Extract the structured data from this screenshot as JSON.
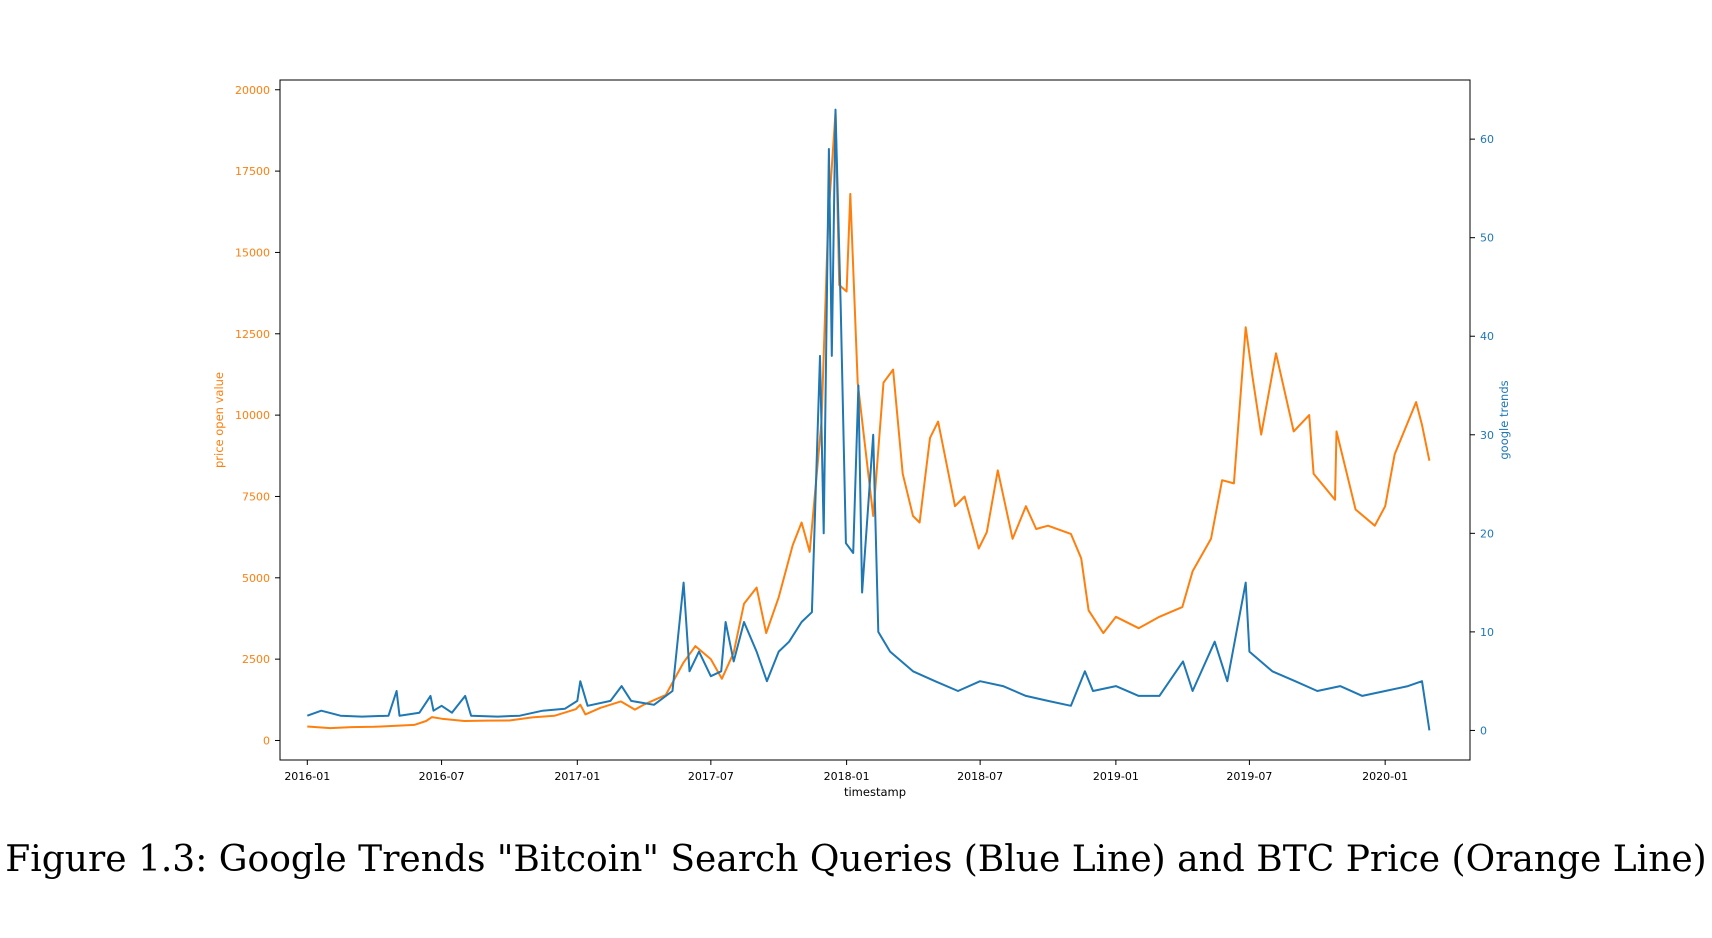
{
  "caption": "Figure 1.3: Google Trends \"Bitcoin\" Search Queries (Blue Line) and BTC Price (Orange Line)",
  "colors": {
    "price": "#ff7f0e",
    "trends": "#1f77b4",
    "axis": "#000000"
  },
  "chart_data": {
    "type": "line",
    "title": "",
    "xlabel": "timestamp",
    "ylabel_left": "price open value",
    "ylabel_right": "google trends",
    "x_tick_labels": [
      "2016-01",
      "2016-07",
      "2017-01",
      "2017-07",
      "2018-01",
      "2018-07",
      "2019-01",
      "2019-07",
      "2020-01"
    ],
    "y_left_ticks": [
      0,
      2500,
      5000,
      7500,
      10000,
      12500,
      15000,
      17500,
      20000
    ],
    "y_right_ticks": [
      0,
      10,
      20,
      30,
      40,
      50,
      60
    ],
    "xlim": [
      "2015-11-25",
      "2020-04-25"
    ],
    "ylim_left": [
      -600,
      20300
    ],
    "ylim_right": [
      -3,
      66
    ],
    "grid": false,
    "series": [
      {
        "name": "price open value",
        "axis": "left",
        "points": [
          [
            "2016-01-01",
            430
          ],
          [
            "2016-02-01",
            380
          ],
          [
            "2016-03-01",
            410
          ],
          [
            "2016-04-01",
            420
          ],
          [
            "2016-05-01",
            450
          ],
          [
            "2016-05-25",
            480
          ],
          [
            "2016-06-10",
            600
          ],
          [
            "2016-06-18",
            720
          ],
          [
            "2016-07-01",
            670
          ],
          [
            "2016-08-01",
            600
          ],
          [
            "2016-09-01",
            610
          ],
          [
            "2016-10-01",
            615
          ],
          [
            "2016-11-01",
            710
          ],
          [
            "2016-12-01",
            760
          ],
          [
            "2016-12-30",
            960
          ],
          [
            "2017-01-05",
            1100
          ],
          [
            "2017-01-12",
            800
          ],
          [
            "2017-02-01",
            1000
          ],
          [
            "2017-03-01",
            1200
          ],
          [
            "2017-03-20",
            950
          ],
          [
            "2017-04-01",
            1100
          ],
          [
            "2017-05-01",
            1400
          ],
          [
            "2017-05-25",
            2400
          ],
          [
            "2017-06-10",
            2900
          ],
          [
            "2017-07-01",
            2500
          ],
          [
            "2017-07-16",
            1900
          ],
          [
            "2017-08-01",
            2700
          ],
          [
            "2017-08-15",
            4200
          ],
          [
            "2017-09-01",
            4700
          ],
          [
            "2017-09-14",
            3300
          ],
          [
            "2017-10-01",
            4400
          ],
          [
            "2017-10-20",
            6000
          ],
          [
            "2017-11-01",
            6700
          ],
          [
            "2017-11-12",
            5800
          ],
          [
            "2017-11-28",
            9800
          ],
          [
            "2017-12-07",
            16000
          ],
          [
            "2017-12-17",
            19300
          ],
          [
            "2017-12-22",
            14000
          ],
          [
            "2018-01-01",
            13800
          ],
          [
            "2018-01-06",
            16800
          ],
          [
            "2018-01-16",
            11000
          ],
          [
            "2018-02-06",
            6900
          ],
          [
            "2018-02-20",
            11000
          ],
          [
            "2018-03-05",
            11400
          ],
          [
            "2018-03-18",
            8200
          ],
          [
            "2018-04-01",
            6900
          ],
          [
            "2018-04-10",
            6700
          ],
          [
            "2018-04-24",
            9300
          ],
          [
            "2018-05-05",
            9800
          ],
          [
            "2018-05-28",
            7200
          ],
          [
            "2018-06-10",
            7500
          ],
          [
            "2018-06-29",
            5900
          ],
          [
            "2018-07-10",
            6400
          ],
          [
            "2018-07-25",
            8300
          ],
          [
            "2018-08-14",
            6200
          ],
          [
            "2018-09-01",
            7200
          ],
          [
            "2018-09-15",
            6500
          ],
          [
            "2018-10-01",
            6600
          ],
          [
            "2018-11-01",
            6350
          ],
          [
            "2018-11-15",
            5600
          ],
          [
            "2018-11-25",
            4000
          ],
          [
            "2018-12-15",
            3300
          ],
          [
            "2019-01-01",
            3800
          ],
          [
            "2019-02-01",
            3450
          ],
          [
            "2019-03-01",
            3800
          ],
          [
            "2019-04-01",
            4100
          ],
          [
            "2019-04-15",
            5200
          ],
          [
            "2019-05-10",
            6200
          ],
          [
            "2019-05-25",
            8000
          ],
          [
            "2019-06-10",
            7900
          ],
          [
            "2019-06-26",
            12700
          ],
          [
            "2019-07-05",
            11200
          ],
          [
            "2019-07-17",
            9400
          ],
          [
            "2019-08-06",
            11900
          ],
          [
            "2019-08-30",
            9500
          ],
          [
            "2019-09-20",
            10000
          ],
          [
            "2019-09-26",
            8200
          ],
          [
            "2019-10-25",
            7400
          ],
          [
            "2019-10-27",
            9500
          ],
          [
            "2019-11-22",
            7100
          ],
          [
            "2019-12-18",
            6600
          ],
          [
            "2020-01-01",
            7200
          ],
          [
            "2020-01-14",
            8800
          ],
          [
            "2020-02-12",
            10400
          ],
          [
            "2020-02-20",
            9700
          ],
          [
            "2020-03-01",
            8600
          ]
        ]
      },
      {
        "name": "google trends",
        "axis": "right",
        "points": [
          [
            "2016-01-01",
            1.5
          ],
          [
            "2016-01-20",
            2
          ],
          [
            "2016-02-15",
            1.5
          ],
          [
            "2016-03-15",
            1.4
          ],
          [
            "2016-04-20",
            1.5
          ],
          [
            "2016-05-01",
            4
          ],
          [
            "2016-05-05",
            1.5
          ],
          [
            "2016-06-01",
            1.8
          ],
          [
            "2016-06-16",
            3.5
          ],
          [
            "2016-06-20",
            2
          ],
          [
            "2016-07-01",
            2.5
          ],
          [
            "2016-07-15",
            1.8
          ],
          [
            "2016-08-02",
            3.5
          ],
          [
            "2016-08-10",
            1.5
          ],
          [
            "2016-09-15",
            1.4
          ],
          [
            "2016-10-15",
            1.5
          ],
          [
            "2016-11-15",
            2
          ],
          [
            "2016-12-15",
            2.2
          ],
          [
            "2017-01-01",
            3
          ],
          [
            "2017-01-05",
            5
          ],
          [
            "2017-01-15",
            2.5
          ],
          [
            "2017-02-15",
            3
          ],
          [
            "2017-03-02",
            4.5
          ],
          [
            "2017-03-15",
            3
          ],
          [
            "2017-04-15",
            2.6
          ],
          [
            "2017-05-10",
            4
          ],
          [
            "2017-05-25",
            15
          ],
          [
            "2017-06-02",
            6
          ],
          [
            "2017-06-15",
            8
          ],
          [
            "2017-07-01",
            5.5
          ],
          [
            "2017-07-15",
            6
          ],
          [
            "2017-07-21",
            11
          ],
          [
            "2017-08-01",
            7
          ],
          [
            "2017-08-15",
            11
          ],
          [
            "2017-09-01",
            8
          ],
          [
            "2017-09-15",
            5
          ],
          [
            "2017-10-01",
            8
          ],
          [
            "2017-10-15",
            9
          ],
          [
            "2017-11-01",
            11
          ],
          [
            "2017-11-15",
            12
          ],
          [
            "2017-11-26",
            38
          ],
          [
            "2017-12-01",
            20
          ],
          [
            "2017-12-08",
            59
          ],
          [
            "2017-12-12",
            38
          ],
          [
            "2017-12-17",
            63
          ],
          [
            "2017-12-24",
            43
          ],
          [
            "2017-12-31",
            19
          ],
          [
            "2018-01-10",
            18
          ],
          [
            "2018-01-17",
            35
          ],
          [
            "2018-01-22",
            14
          ],
          [
            "2018-02-06",
            30
          ],
          [
            "2018-02-13",
            10
          ],
          [
            "2018-03-01",
            8
          ],
          [
            "2018-04-01",
            6
          ],
          [
            "2018-05-01",
            5
          ],
          [
            "2018-06-01",
            4
          ],
          [
            "2018-07-01",
            5
          ],
          [
            "2018-08-01",
            4.5
          ],
          [
            "2018-09-01",
            3.5
          ],
          [
            "2018-10-01",
            3
          ],
          [
            "2018-11-01",
            2.5
          ],
          [
            "2018-11-20",
            6
          ],
          [
            "2018-12-01",
            4
          ],
          [
            "2019-01-01",
            4.5
          ],
          [
            "2019-02-01",
            3.5
          ],
          [
            "2019-03-01",
            3.5
          ],
          [
            "2019-04-02",
            7
          ],
          [
            "2019-04-15",
            4
          ],
          [
            "2019-05-15",
            9
          ],
          [
            "2019-06-01",
            5
          ],
          [
            "2019-06-26",
            15
          ],
          [
            "2019-07-01",
            8
          ],
          [
            "2019-08-01",
            6
          ],
          [
            "2019-09-01",
            5
          ],
          [
            "2019-10-01",
            4
          ],
          [
            "2019-11-01",
            4.5
          ],
          [
            "2019-12-01",
            3.5
          ],
          [
            "2020-01-01",
            4
          ],
          [
            "2020-02-01",
            4.5
          ],
          [
            "2020-02-20",
            5
          ],
          [
            "2020-03-01",
            0
          ]
        ]
      }
    ]
  }
}
